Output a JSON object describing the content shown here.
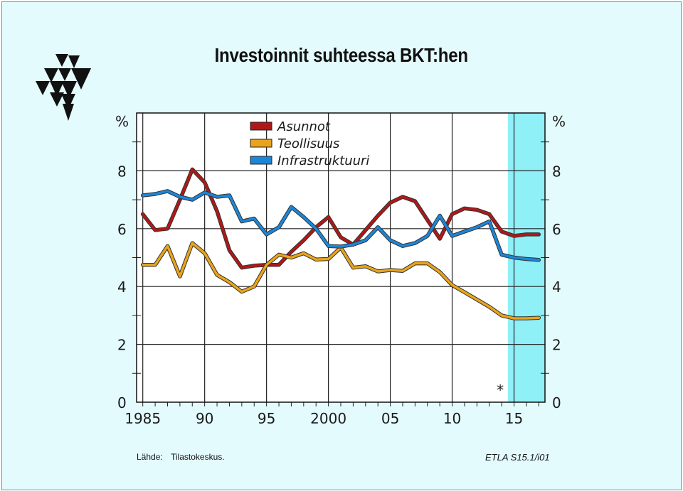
{
  "title": "Investoinnit suhteessa BKT:hen",
  "logo_icon": "etla-triangles-logo",
  "footer": {
    "source_label": "Lähde:",
    "source": "Tilastokeskus.",
    "code": "ETLA S15.1/i01"
  },
  "colors": {
    "background": "#e4fbfd",
    "forecast_band": "#8ff0f8",
    "Asunnot": "#b01818",
    "Teollisuus": "#e8a41c",
    "Infrastruktuuri": "#1c86d8"
  },
  "chart_data": {
    "type": "line",
    "y_unit_label": "%",
    "ylim": [
      0,
      10
    ],
    "xlim": [
      1984.5,
      2017.5
    ],
    "y_ticks": [
      0,
      2,
      4,
      6,
      8
    ],
    "x_ticks": [
      1985,
      1990,
      1995,
      2000,
      2005,
      2010,
      2015
    ],
    "x_tick_labels": [
      "1985",
      "90",
      "95",
      "2000",
      "05",
      "10",
      "15"
    ],
    "grid": true,
    "forecast_start": 2014.5,
    "forecast_marker": "*",
    "legend_position": "top-center",
    "x": [
      1985,
      1986,
      1987,
      1988,
      1989,
      1990,
      1991,
      1992,
      1993,
      1994,
      1995,
      1996,
      1997,
      1998,
      1999,
      2000,
      2001,
      2002,
      2003,
      2004,
      2005,
      2006,
      2007,
      2008,
      2009,
      2010,
      2011,
      2012,
      2013,
      2014,
      2015,
      2016,
      2017
    ],
    "series": [
      {
        "name": "Asunnot",
        "values": [
          6.5,
          5.95,
          6.0,
          7.0,
          8.05,
          7.6,
          6.6,
          5.25,
          4.65,
          4.72,
          4.75,
          4.75,
          5.2,
          5.6,
          6.05,
          6.4,
          5.7,
          5.45,
          5.95,
          6.45,
          6.9,
          7.1,
          6.95,
          6.3,
          5.65,
          6.5,
          6.7,
          6.65,
          6.5,
          5.9,
          5.75,
          5.8,
          5.8
        ]
      },
      {
        "name": "Teollisuus",
        "values": [
          4.75,
          4.75,
          5.4,
          4.35,
          5.5,
          5.15,
          4.4,
          4.15,
          3.82,
          4.0,
          4.75,
          5.1,
          5.0,
          5.15,
          4.93,
          4.95,
          5.35,
          4.65,
          4.7,
          4.52,
          4.57,
          4.54,
          4.8,
          4.8,
          4.5,
          4.05,
          3.8,
          3.55,
          3.3,
          3.0,
          2.9,
          2.9,
          2.92
        ]
      },
      {
        "name": "Infrastruktuuri",
        "values": [
          7.15,
          7.2,
          7.3,
          7.1,
          7.0,
          7.25,
          7.1,
          7.15,
          6.25,
          6.35,
          5.8,
          6.05,
          6.75,
          6.4,
          6.0,
          5.4,
          5.38,
          5.45,
          5.6,
          6.05,
          5.6,
          5.4,
          5.5,
          5.75,
          6.45,
          5.75,
          5.9,
          6.05,
          6.25,
          5.1,
          5.0,
          4.95,
          4.92
        ]
      }
    ]
  }
}
